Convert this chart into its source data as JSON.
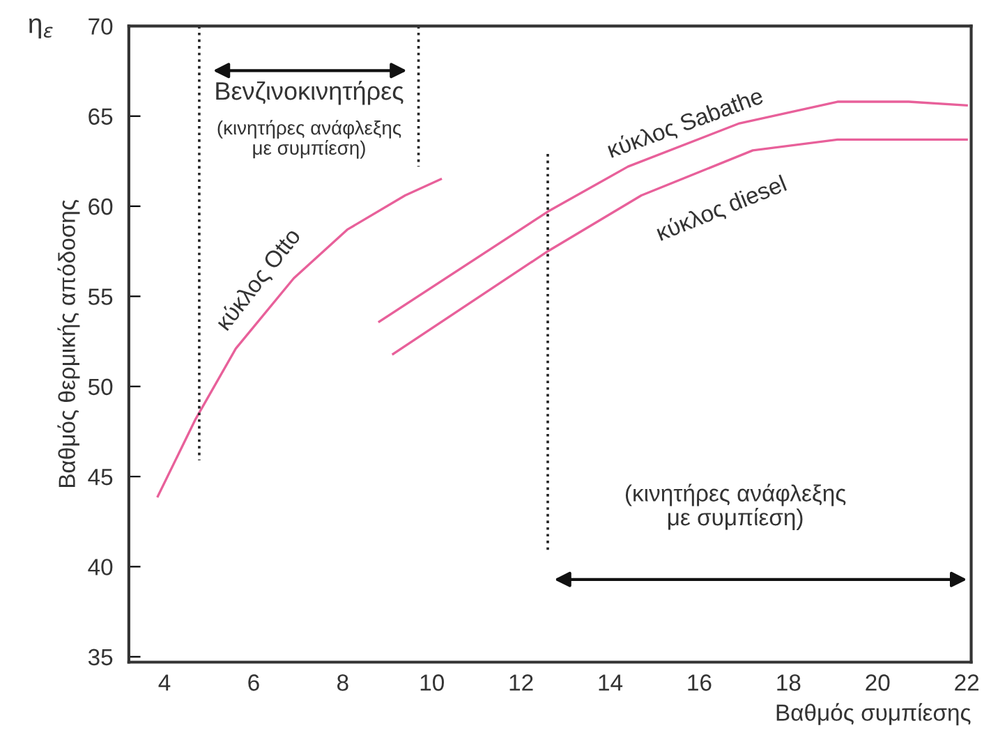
{
  "chart_data": {
    "type": "line",
    "xlabel": "Βαθμός συμπίεσης",
    "ylabel": "Βαθμός θερμικής απόδοσης",
    "xlim": [
      3.2,
      22.1
    ],
    "ylim": [
      34.7,
      70
    ],
    "xticks": [
      4,
      6,
      8,
      10,
      12,
      14,
      16,
      18,
      20,
      22
    ],
    "yticks": [
      35,
      40,
      45,
      50,
      55,
      60,
      65,
      70
    ],
    "grid": false,
    "legend": false,
    "marker": "none",
    "series": [
      {
        "color": "#e8609a",
        "line_style": "solid",
        "x": [
          3.85,
          4.7,
          5.6,
          6.9,
          8.1,
          9.4,
          10.2
        ],
        "values": [
          43.9,
          48.2,
          52.1,
          56.0,
          58.7,
          60.6,
          61.5
        ]
      },
      {
        "color": "#e8609a",
        "line_style": "solid",
        "x": [
          8.82,
          12.6,
          14.4,
          16.9,
          19.1,
          20.7,
          22.0
        ],
        "values": [
          53.6,
          59.7,
          62.2,
          64.6,
          65.8,
          65.8,
          65.6
        ]
      },
      {
        "color": "#e8609a",
        "line_style": "solid",
        "x": [
          9.13,
          12.6,
          14.7,
          17.2,
          19.1,
          22.0
        ],
        "values": [
          51.8,
          57.5,
          60.6,
          63.1,
          63.7,
          63.7
        ]
      },
      {
        "color": "#222222",
        "line_style": "dotted",
        "x": [
          4.78,
          4.78
        ],
        "values": [
          70,
          45.9
        ]
      },
      {
        "color": "#222222",
        "line_style": "dotted",
        "x": [
          9.7,
          9.7
        ],
        "values": [
          70,
          62.2
        ]
      },
      {
        "color": "#222222",
        "line_style": "dotted",
        "x": [
          12.6,
          12.6
        ],
        "values": [
          62.9,
          40.7
        ]
      }
    ],
    "annotations": [
      {
        "text": "η$_{ε}$"
      },
      "κύκλος Otto",
      "κύκλος Sabathe",
      "κύκλος diesel",
      "Βενζινοκινητήρες",
      "(κινητήρες ανάφλεξης\nμε συμπίεση)",
      "(κινητήρες ανάφλεξης\nμε συμπίεση)"
    ]
  }
}
